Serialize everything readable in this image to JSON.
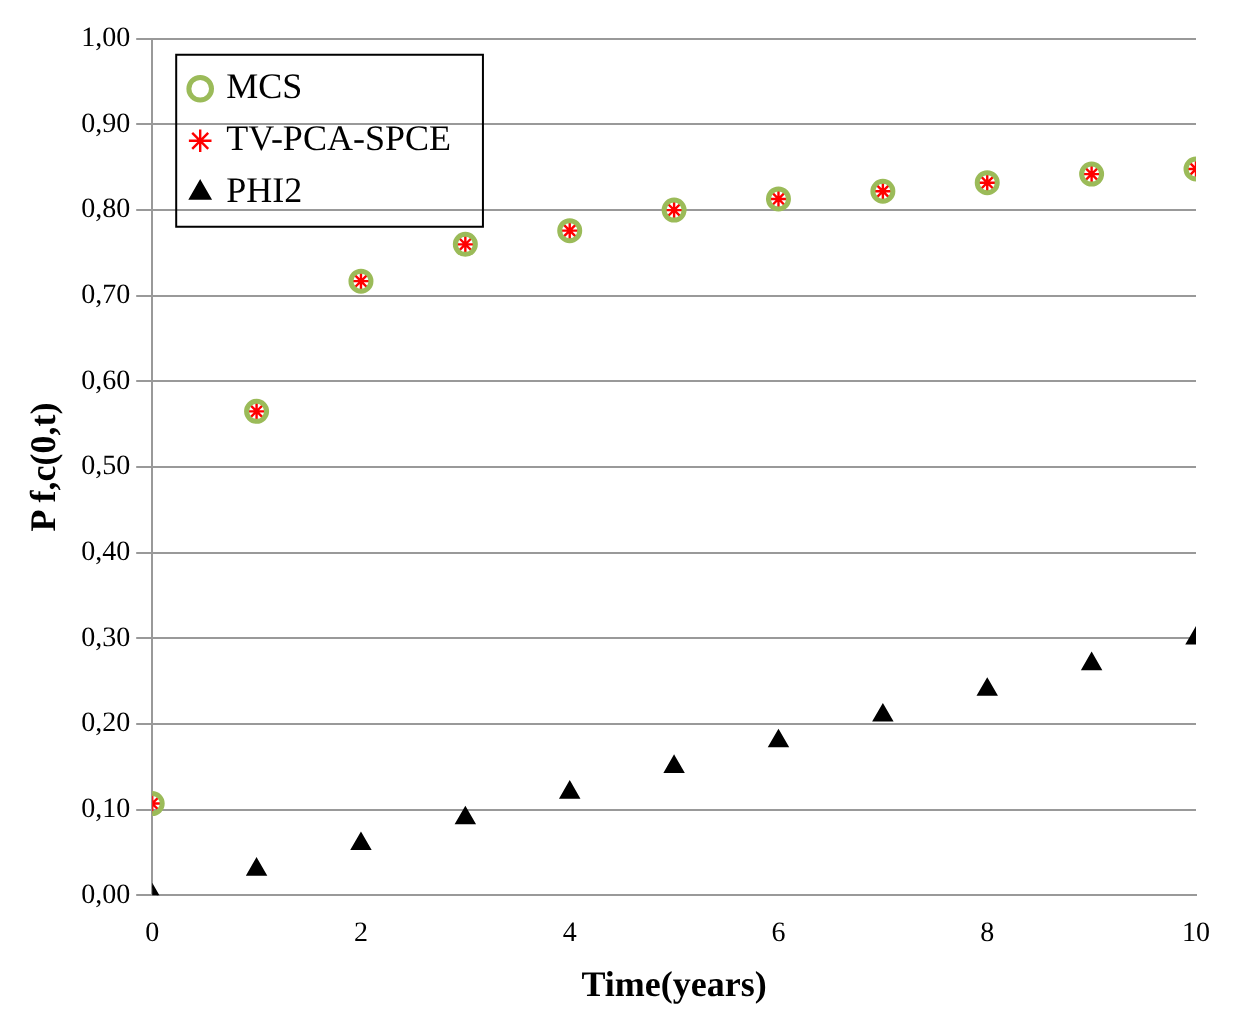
{
  "chart_data": {
    "type": "scatter",
    "xlabel": "Time(years)",
    "ylabel": "P f,c(0,t)",
    "x": [
      0,
      1,
      2,
      3,
      4,
      5,
      6,
      7,
      8,
      9,
      10
    ],
    "series": [
      {
        "name": "MCS",
        "color": "#9bbb59",
        "marker": "circle",
        "values": [
          0.107,
          0.565,
          0.717,
          0.76,
          0.776,
          0.8,
          0.813,
          0.822,
          0.832,
          0.842,
          0.848
        ]
      },
      {
        "name": "TV-PCA-SPCE",
        "color": "#ff0000",
        "marker": "cross",
        "values": [
          0.107,
          0.565,
          0.717,
          0.76,
          0.776,
          0.8,
          0.813,
          0.822,
          0.832,
          0.842,
          0.848
        ]
      },
      {
        "name": "PHI2",
        "color": "#000000",
        "marker": "triangle",
        "values": [
          0,
          0.03,
          0.06,
          0.09,
          0.12,
          0.15,
          0.18,
          0.21,
          0.24,
          0.27,
          0.3
        ]
      }
    ],
    "xlim": [
      0,
      10
    ],
    "xticks": [
      0,
      2,
      4,
      6,
      8,
      10
    ],
    "ylim": [
      0,
      1
    ],
    "yticks": [
      {
        "value": 0,
        "label": "0,00"
      },
      {
        "value": 0.1,
        "label": "0,10"
      },
      {
        "value": 0.2,
        "label": "0,20"
      },
      {
        "value": 0.3,
        "label": "0,30"
      },
      {
        "value": 0.4,
        "label": "0,40"
      },
      {
        "value": 0.5,
        "label": "0,50"
      },
      {
        "value": 0.6,
        "label": "0,60"
      },
      {
        "value": 0.7,
        "label": "0,70"
      },
      {
        "value": 0.8,
        "label": "0,80"
      },
      {
        "value": 0.9,
        "label": "0,90"
      },
      {
        "value": 1,
        "label": "1,00"
      }
    ],
    "grid": "y",
    "legend": "top left"
  }
}
